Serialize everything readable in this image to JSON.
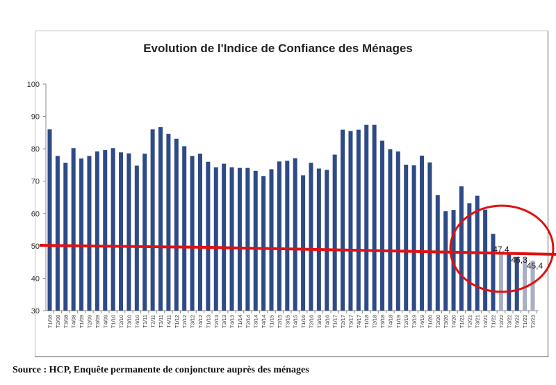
{
  "chart_data": {
    "type": "bar",
    "title": "Evolution de l'Indice de Confiance des Ménages",
    "xlabel": "",
    "ylabel": "",
    "ylim": [
      30,
      100
    ],
    "yticks": [
      30,
      40,
      50,
      60,
      70,
      80,
      90,
      100
    ],
    "grid": false,
    "categories": [
      "T1/08",
      "T2/08",
      "T3/08",
      "T4/08",
      "T1/09",
      "T2/09",
      "T3/09",
      "T4/09",
      "T1/10",
      "T2/10",
      "T3/10",
      "T4/10",
      "T1/11",
      "T2/11",
      "T3/11",
      "T4/11",
      "T1/12",
      "T2/12",
      "T3/12",
      "T4/12",
      "T1/13",
      "T2/13",
      "T3/13",
      "T4/13",
      "T1/14",
      "T2/14",
      "T3/14",
      "T4/14",
      "T1/15",
      "T2/15",
      "T3/15",
      "T4/15",
      "T1/16",
      "T2/16",
      "T3/16",
      "T4/16",
      "T1/17",
      "T2/17",
      "T3/17",
      "T4/17",
      "T1/18",
      "T2/18",
      "T3/18",
      "T4/18",
      "T1/19",
      "T2/19",
      "T3/19",
      "T4/19",
      "T1/20",
      "T2/20",
      "T3/20",
      "T4/20",
      "T1/21",
      "T2/21",
      "T3/21",
      "T4/21",
      "T1/22",
      "T2/22",
      "T3/22",
      "T4/22",
      "T1/23",
      "T2/23"
    ],
    "values": [
      86.0,
      77.8,
      75.7,
      80.2,
      77.0,
      77.8,
      79.2,
      79.6,
      80.2,
      78.9,
      78.6,
      74.8,
      78.5,
      86.0,
      86.7,
      84.6,
      83.1,
      80.8,
      77.8,
      78.5,
      76.0,
      74.3,
      75.4,
      74.3,
      74.1,
      74.1,
      73.2,
      71.6,
      73.7,
      76.1,
      76.3,
      77.1,
      71.8,
      75.7,
      73.9,
      73.5,
      78.2,
      85.9,
      85.5,
      85.9,
      87.4,
      87.4,
      82.5,
      79.9,
      79.2,
      75.1,
      74.9,
      77.9,
      75.8,
      65.7,
      60.7,
      61.1,
      68.4,
      63.2,
      65.5,
      61.2,
      53.7,
      47.4,
      47.6,
      46.6,
      46.3,
      45.4
    ],
    "highlighted": [
      "T2/22",
      "T1/23",
      "T2/23"
    ],
    "data_labels": [
      {
        "category": "T2/22",
        "text": "47,4"
      },
      {
        "category": "T1/23",
        "text": "46,3"
      },
      {
        "category": "T2/23",
        "text": "45,4"
      }
    ],
    "colors": {
      "bar": "#2e4a87",
      "highlight_bar": "#a8afc4",
      "annotation": "#e01010"
    },
    "annotations": [
      "red horizontal line near 50",
      "red circle around T1/22–T2/23"
    ]
  },
  "source": "Source : HCP, Enquête permanente de conjoncture auprès des ménages"
}
